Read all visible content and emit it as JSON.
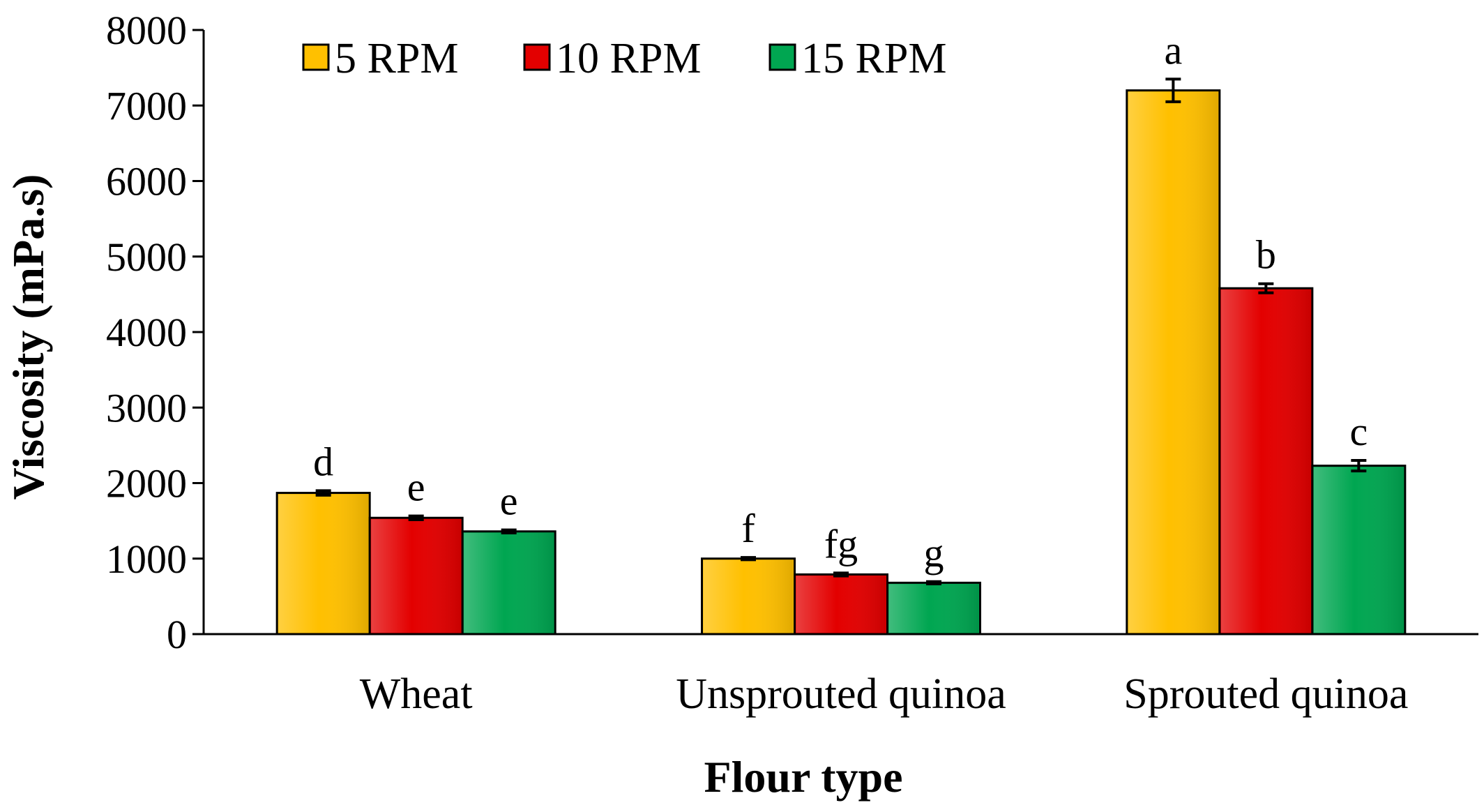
{
  "chart_data": {
    "type": "bar",
    "xlabel": "Flour type",
    "ylabel": "Viscosity (mPa.s)",
    "ylim": [
      0,
      8000
    ],
    "yticks": [
      0,
      1000,
      2000,
      3000,
      4000,
      5000,
      6000,
      7000,
      8000
    ],
    "grid": false,
    "legend_position": "top-left",
    "categories": [
      "Wheat",
      "Unsprouted quinoa",
      "Sprouted quinoa"
    ],
    "series": [
      {
        "name": "5 RPM",
        "color": "#FFC000",
        "values": [
          1870,
          1000,
          7200
        ],
        "errors": [
          30,
          15,
          150
        ],
        "labels": [
          "d",
          "f",
          "a"
        ]
      },
      {
        "name": "10 RPM",
        "color": "#E30000",
        "values": [
          1540,
          790,
          4580
        ],
        "errors": [
          25,
          20,
          60
        ],
        "labels": [
          "e",
          "fg",
          "b"
        ]
      },
      {
        "name": "15 RPM",
        "color": "#00A651",
        "values": [
          1360,
          680,
          2230
        ],
        "errors": [
          20,
          15,
          70
        ],
        "labels": [
          "e",
          "g",
          "c"
        ]
      }
    ]
  }
}
